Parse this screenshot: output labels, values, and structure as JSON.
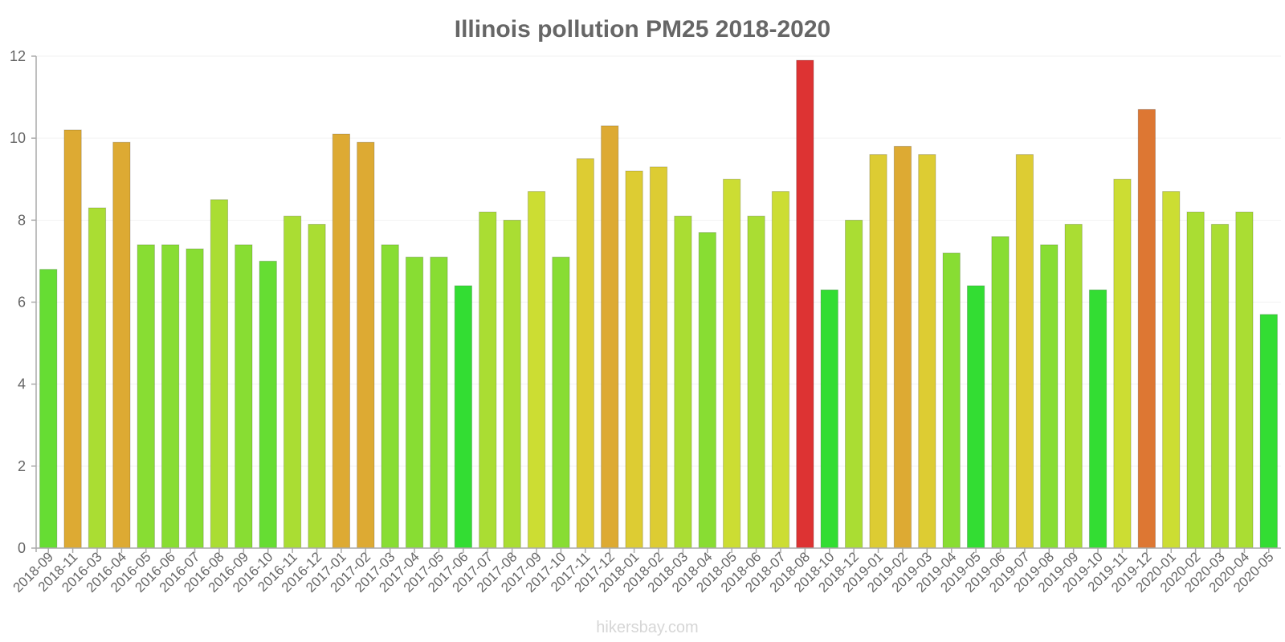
{
  "chart_data": {
    "type": "bar",
    "title": "Illinois pollution PM25 2018-2020",
    "xlabel": "",
    "ylabel": "",
    "ylim": [
      0,
      12
    ],
    "yticks": [
      0,
      2,
      4,
      6,
      8,
      10,
      12
    ],
    "grid": false,
    "legend": "none",
    "categories": [
      "2018-09",
      "2018-11",
      "2016-03",
      "2016-04",
      "2016-05",
      "2016-06",
      "2016-07",
      "2016-08",
      "2016-09",
      "2016-10",
      "2016-11",
      "2016-12",
      "2017-01",
      "2017-02",
      "2017-03",
      "2017-04",
      "2017-05",
      "2017-06",
      "2017-07",
      "2017-08",
      "2017-09",
      "2017-10",
      "2017-11",
      "2017-12",
      "2018-01",
      "2018-02",
      "2018-03",
      "2018-04",
      "2018-05",
      "2018-06",
      "2018-07",
      "2018-08",
      "2018-10",
      "2018-12",
      "2019-01",
      "2019-02",
      "2019-03",
      "2019-04",
      "2019-05",
      "2019-06",
      "2019-07",
      "2019-08",
      "2019-09",
      "2019-10",
      "2019-11",
      "2019-12",
      "2020-01",
      "2020-02",
      "2020-03",
      "2020-04",
      "2020-05"
    ],
    "values": [
      6.8,
      10.2,
      8.3,
      9.9,
      7.4,
      7.4,
      7.3,
      8.5,
      7.4,
      7.0,
      8.1,
      7.9,
      10.1,
      9.9,
      7.4,
      7.1,
      7.1,
      6.4,
      8.2,
      8.0,
      8.7,
      7.1,
      9.5,
      10.3,
      9.2,
      9.3,
      8.1,
      7.7,
      9.0,
      8.1,
      8.7,
      11.9,
      6.3,
      8.0,
      9.6,
      9.8,
      9.6,
      7.2,
      6.4,
      7.6,
      9.6,
      7.4,
      7.9,
      6.3,
      9.0,
      10.7,
      8.7,
      8.2,
      7.9,
      8.2,
      5.7
    ],
    "colors": [
      "#66dd33",
      "#ddaa33",
      "#aadd33",
      "#ddaa33",
      "#88dd33",
      "#88dd33",
      "#88dd33",
      "#aadd33",
      "#88dd33",
      "#66dd33",
      "#aadd33",
      "#aadd33",
      "#ddaa33",
      "#ddaa33",
      "#88dd33",
      "#88dd33",
      "#88dd33",
      "#33dd33",
      "#aadd33",
      "#aadd33",
      "#ccdd33",
      "#88dd33",
      "#ddcc33",
      "#ddaa33",
      "#ddcc33",
      "#ddcc33",
      "#aadd33",
      "#88dd33",
      "#ccdd33",
      "#aadd33",
      "#ccdd33",
      "#dd3333",
      "#33dd33",
      "#aadd33",
      "#ddcc33",
      "#ddaa33",
      "#ddcc33",
      "#88dd33",
      "#33dd33",
      "#88dd33",
      "#ddcc33",
      "#88dd33",
      "#aadd33",
      "#33dd33",
      "#ccdd33",
      "#dd7733",
      "#ccdd33",
      "#aadd33",
      "#aadd33",
      "#aadd33",
      "#33dd33"
    ]
  },
  "watermark": "hikersbay.com"
}
